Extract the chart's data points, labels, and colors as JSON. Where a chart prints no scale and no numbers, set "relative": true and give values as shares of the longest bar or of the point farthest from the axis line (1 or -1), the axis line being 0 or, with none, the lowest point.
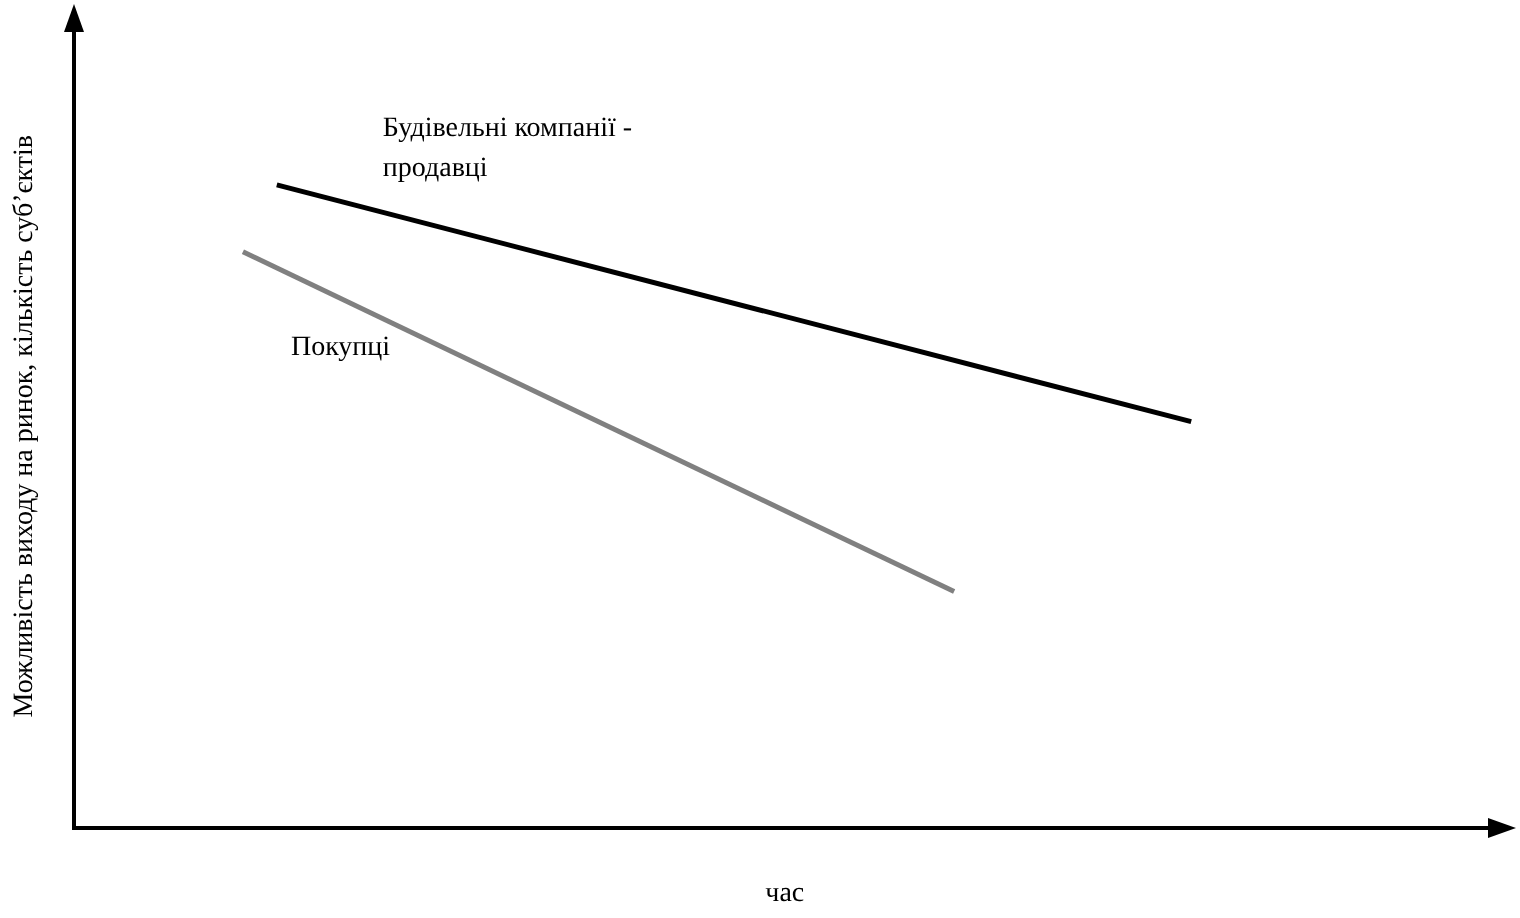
{
  "chart_data": {
    "type": "line",
    "relative": true,
    "xlabel": "час",
    "ylabel": "Можливість виходу на ринок, кількість суб’єктів",
    "legend": false,
    "grid": false,
    "marker": "none",
    "categories": [
      null,
      null,
      null,
      null,
      null,
      null,
      null,
      null,
      null,
      null,
      null,
      null,
      null,
      null,
      null,
      null,
      null,
      null,
      null,
      null,
      null,
      null,
      null,
      null,
      null,
      null,
      null,
      null,
      null,
      null,
      null,
      null,
      null,
      null,
      null,
      null,
      null,
      null,
      null,
      null,
      null,
      null,
      null
    ],
    "series": [
      {
        "name": "Будівельні компанії - продавці",
        "color": "#000000",
        "values": [
          null,
          null,
          null,
          null,
          null,
          null,
          1,
          null,
          null,
          null,
          null,
          null,
          null,
          null,
          null,
          null,
          null,
          null,
          null,
          null,
          null,
          null,
          null,
          null,
          null,
          null,
          null,
          null,
          null,
          null,
          null,
          null,
          null,
          0.632,
          null,
          null,
          null,
          null,
          null,
          null,
          null,
          null,
          null
        ]
      },
      {
        "name": "Покупці",
        "color": "#808080",
        "values": [
          null,
          null,
          null,
          null,
          null,
          0.896,
          null,
          null,
          null,
          null,
          null,
          null,
          null,
          null,
          null,
          null,
          null,
          null,
          null,
          null,
          null,
          null,
          null,
          null,
          null,
          null,
          0.368,
          null,
          null,
          null,
          null,
          null,
          null,
          null,
          null,
          null,
          null,
          null,
          null,
          null,
          null,
          null,
          null
        ]
      }
    ]
  }
}
